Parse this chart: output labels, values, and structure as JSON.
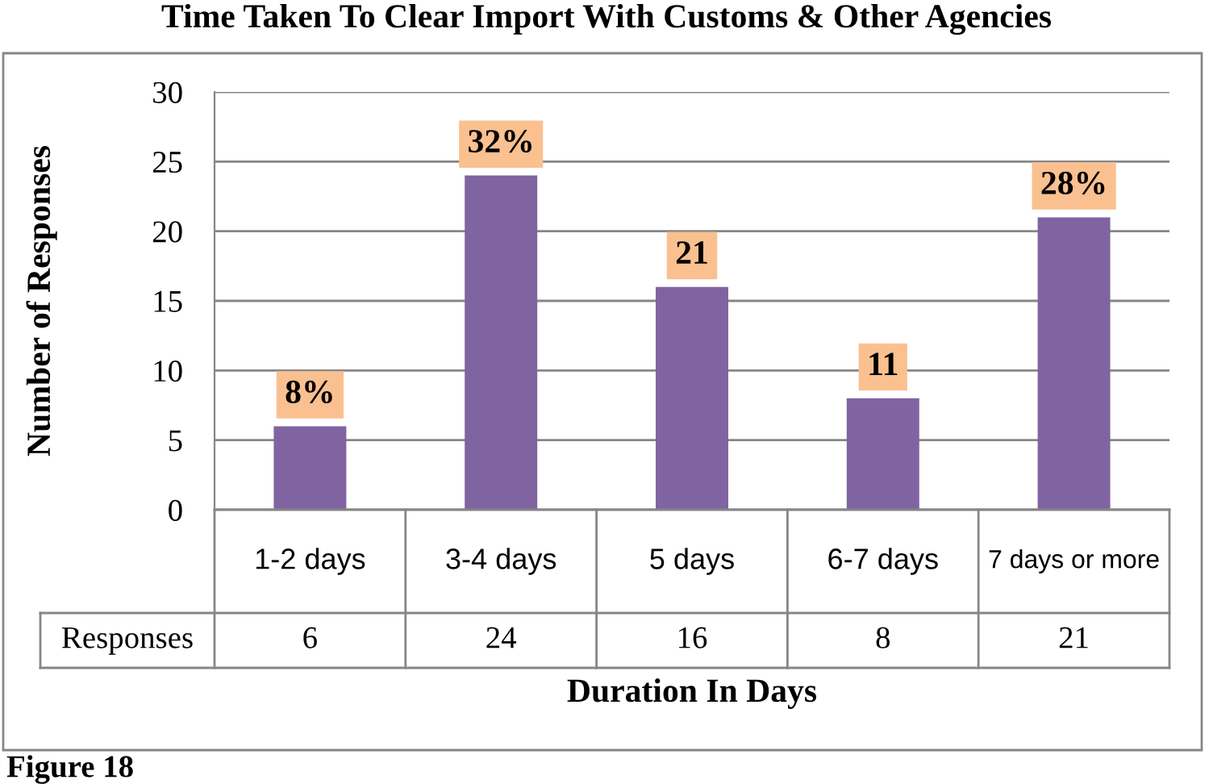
{
  "chart_data": {
    "type": "bar",
    "title": "Time Taken To Clear Import With Customs & Other Agencies",
    "xlabel": "Duration In Days",
    "ylabel": "Number of Responses",
    "categories": [
      "1-2 days",
      "3-4 days",
      "5 days",
      "6-7 days",
      "7 days or more"
    ],
    "series": [
      {
        "name": "Responses",
        "color": "#8064a2",
        "values": [
          6,
          24,
          16,
          8,
          21
        ]
      }
    ],
    "data_labels": true,
    "ylim": [
      0,
      30
    ],
    "yticks": [
      0,
      5,
      10,
      15,
      20,
      25,
      30
    ],
    "grid": "y",
    "legend": false,
    "annotations": [
      {
        "text": "8%",
        "x": "1-2 days",
        "y": 6
      },
      {
        "text": "32%",
        "x": "3-4 days",
        "y": 24
      },
      {
        "text": "21",
        "x": "5 days",
        "y": 16
      },
      {
        "text": "11",
        "x": "6-7 days",
        "y": 8
      },
      {
        "text": "28%",
        "x": "7 days or more",
        "y": 21
      },
      "Figure 18"
    ]
  }
}
